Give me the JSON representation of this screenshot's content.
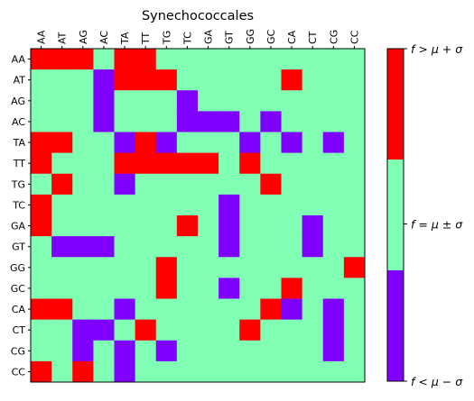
{
  "colors": {
    "low": "#8000ff",
    "mid": "#80ffb4",
    "high": "#ff0000"
  },
  "chart_data": {
    "type": "heatmap",
    "title": "Synechococcales",
    "categories": [
      "AA",
      "AT",
      "AG",
      "AC",
      "TA",
      "TT",
      "TG",
      "TC",
      "GA",
      "GT",
      "GG",
      "GC",
      "CA",
      "CT",
      "CG",
      "CC"
    ],
    "value_encoding": {
      "-1": "f < μ − σ",
      "0": "f = μ ± σ",
      "1": "f > μ + σ"
    },
    "matrix": [
      [
        1,
        1,
        1,
        0,
        1,
        1,
        0,
        0,
        0,
        0,
        0,
        0,
        0,
        0,
        0,
        0
      ],
      [
        0,
        0,
        0,
        -1,
        1,
        1,
        1,
        0,
        0,
        0,
        0,
        0,
        1,
        0,
        0,
        0
      ],
      [
        0,
        0,
        0,
        -1,
        0,
        0,
        0,
        -1,
        0,
        0,
        0,
        0,
        0,
        0,
        0,
        0
      ],
      [
        0,
        0,
        0,
        -1,
        0,
        0,
        0,
        -1,
        -1,
        -1,
        0,
        -1,
        0,
        0,
        0,
        0
      ],
      [
        1,
        1,
        0,
        0,
        -1,
        1,
        -1,
        0,
        0,
        0,
        -1,
        0,
        -1,
        0,
        -1,
        0
      ],
      [
        1,
        0,
        0,
        0,
        1,
        1,
        1,
        1,
        1,
        0,
        1,
        0,
        0,
        0,
        0,
        0
      ],
      [
        0,
        1,
        0,
        0,
        -1,
        0,
        0,
        0,
        0,
        0,
        0,
        1,
        0,
        0,
        0,
        0
      ],
      [
        1,
        0,
        0,
        0,
        0,
        0,
        0,
        0,
        0,
        -1,
        0,
        0,
        0,
        0,
        0,
        0
      ],
      [
        1,
        0,
        0,
        0,
        0,
        0,
        0,
        1,
        0,
        -1,
        0,
        0,
        0,
        -1,
        0,
        0
      ],
      [
        0,
        -1,
        -1,
        -1,
        0,
        0,
        0,
        0,
        0,
        -1,
        0,
        0,
        0,
        -1,
        0,
        0
      ],
      [
        0,
        0,
        0,
        0,
        0,
        0,
        1,
        0,
        0,
        0,
        0,
        0,
        0,
        0,
        0,
        1
      ],
      [
        0,
        0,
        0,
        0,
        0,
        0,
        1,
        0,
        0,
        -1,
        0,
        0,
        1,
        0,
        0,
        0
      ],
      [
        1,
        1,
        0,
        0,
        -1,
        0,
        0,
        0,
        0,
        0,
        0,
        1,
        -1,
        0,
        -1,
        0
      ],
      [
        0,
        0,
        -1,
        -1,
        0,
        1,
        0,
        0,
        0,
        0,
        1,
        0,
        0,
        0,
        -1,
        0
      ],
      [
        0,
        0,
        -1,
        0,
        -1,
        0,
        -1,
        0,
        0,
        0,
        0,
        0,
        0,
        0,
        -1,
        0
      ],
      [
        1,
        0,
        1,
        0,
        -1,
        0,
        0,
        0,
        0,
        0,
        0,
        0,
        0,
        0,
        0,
        0
      ]
    ],
    "colorbar": {
      "labels": [
        "f > μ + σ",
        "f = μ ± σ",
        "f < μ − σ"
      ]
    }
  }
}
